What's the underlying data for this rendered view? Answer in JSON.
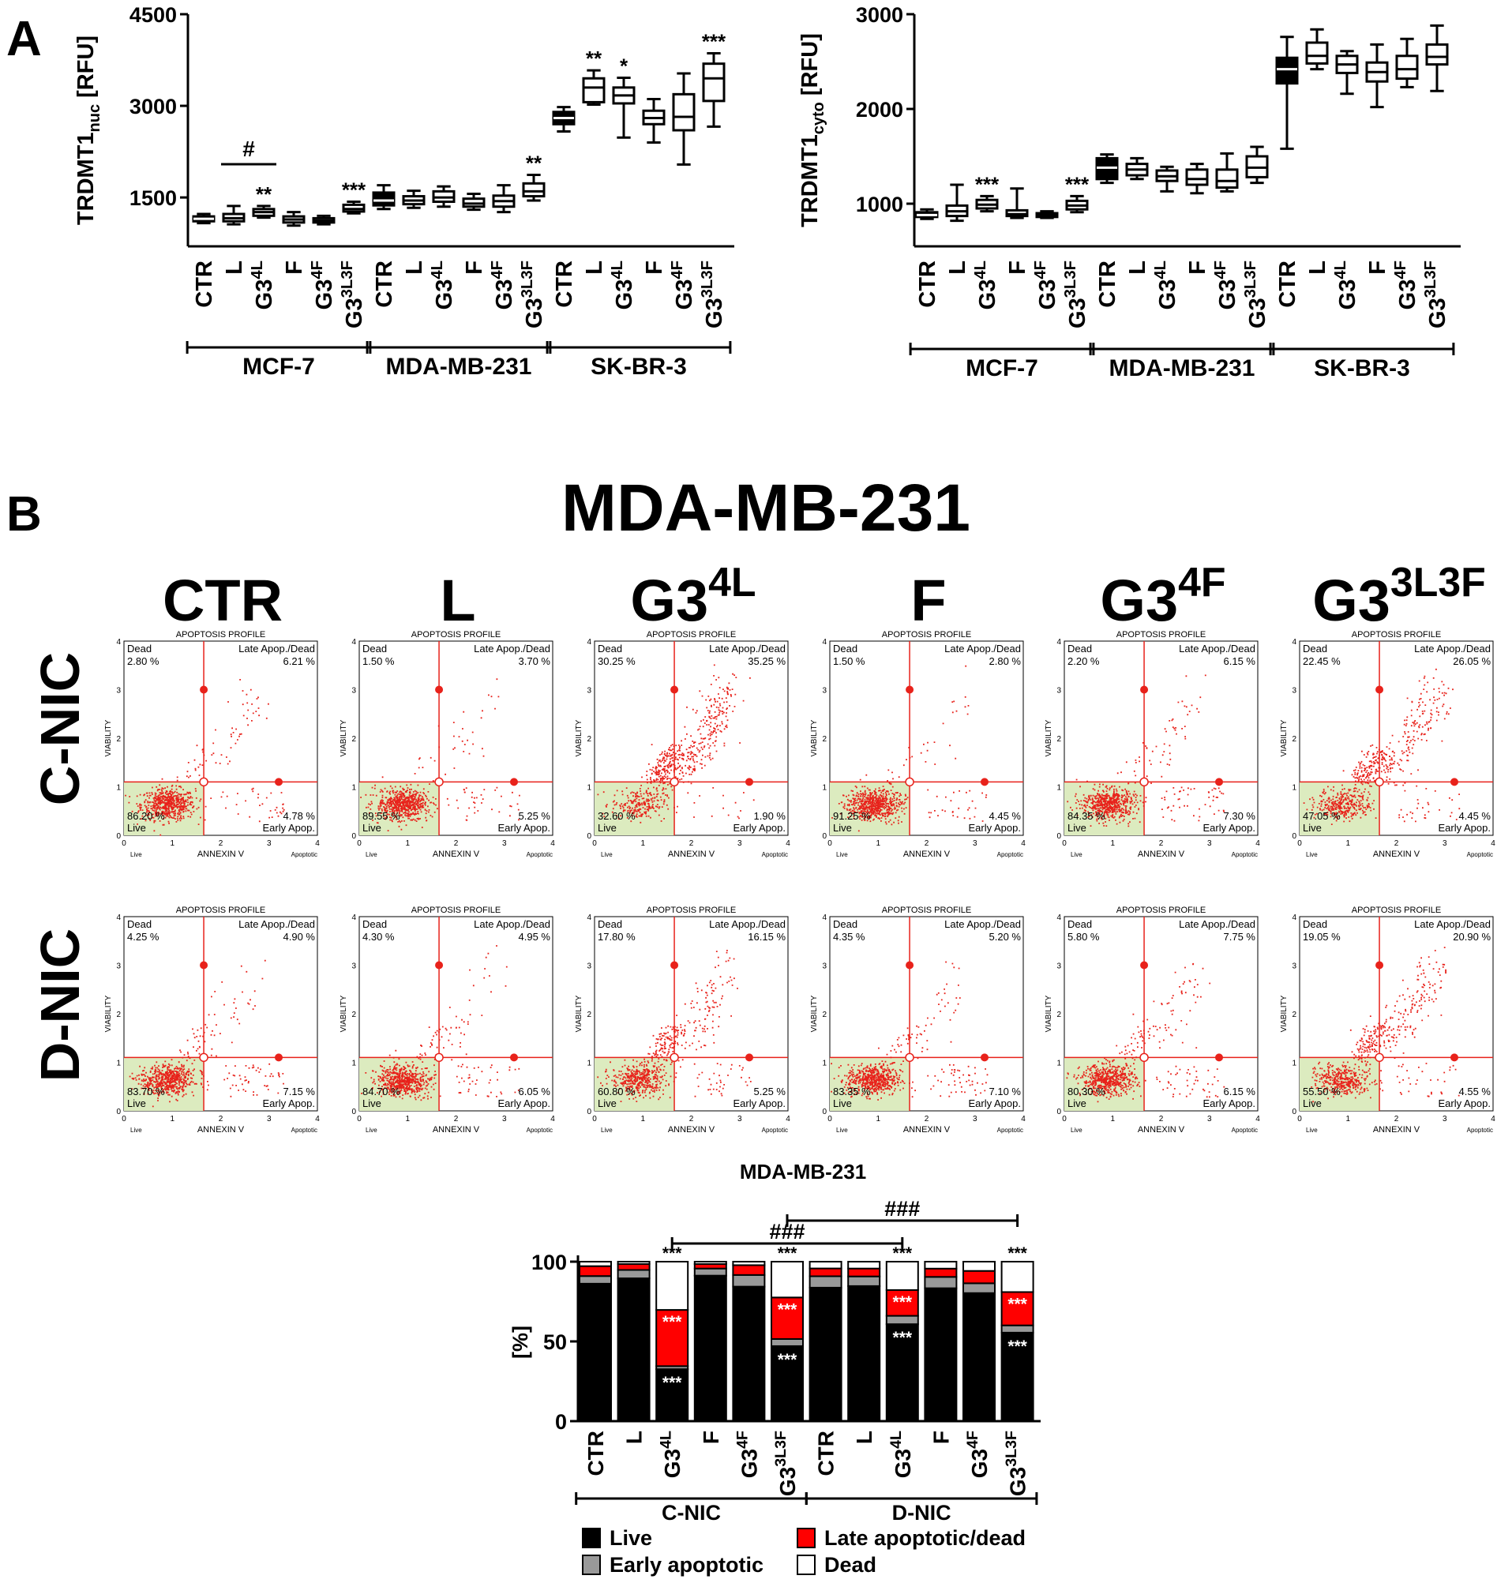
{
  "colors": {
    "box_filled": "#000000",
    "box_open": "#ffffff",
    "scatter": "#e8221b",
    "gate_line": "#e8221b",
    "live_gate_fill": "#dcebbf",
    "live": "#000000",
    "early": "#999999",
    "late": "#ff0000",
    "dead": "#ffffff"
  },
  "panel_a": {
    "label": "A",
    "nuc": {
      "y_title": "TRDMT1",
      "y_sub": "nuc",
      "y_unit": " [RFU]",
      "yticks": [
        "1500",
        "3000",
        "4500"
      ],
      "ytick_values": [
        1500,
        3000,
        4500
      ],
      "ylim": [
        700,
        4500
      ]
    },
    "cyto": {
      "y_title": "TRDMT1",
      "y_sub": "cyto",
      "y_unit": " [RFU]",
      "yticks": [
        "1000",
        "2000",
        "3000"
      ],
      "ytick_values": [
        1000,
        2000,
        3000
      ],
      "ylim": [
        550,
        3000
      ]
    },
    "treatments": [
      {
        "base": "CTR",
        "sup": ""
      },
      {
        "base": "L",
        "sup": ""
      },
      {
        "base": "G3",
        "sup": "4L"
      },
      {
        "base": "F",
        "sup": ""
      },
      {
        "base": "G3",
        "sup": "4F"
      },
      {
        "base": "G3",
        "sup": "3L3F"
      }
    ],
    "cell_lines": [
      "MCF-7",
      "MDA-MB-231",
      "SK-BR-3"
    ],
    "hash": "#"
  },
  "chart_data": [
    {
      "type": "box",
      "title": "",
      "ylabel": "TRDMT1nuc [RFU]",
      "ylim": [
        700,
        4500
      ],
      "groups": [
        "MCF-7",
        "MDA-MB-231",
        "SK-BR-3"
      ],
      "categories": [
        "CTR",
        "L",
        "G3 4L",
        "F",
        "G3 4F",
        "G3 3L3F"
      ],
      "boxes": [
        {
          "group": "MCF-7",
          "cat": "CTR",
          "min": 1080,
          "q1": 1110,
          "median": 1150,
          "q3": 1190,
          "max": 1230,
          "sig": ""
        },
        {
          "group": "MCF-7",
          "cat": "L",
          "min": 1060,
          "q1": 1110,
          "median": 1160,
          "q3": 1230,
          "max": 1360,
          "sig": ""
        },
        {
          "group": "MCF-7",
          "cat": "G3 4L",
          "min": 1170,
          "q1": 1200,
          "median": 1260,
          "q3": 1310,
          "max": 1360,
          "sig": "**"
        },
        {
          "group": "MCF-7",
          "cat": "F",
          "min": 1040,
          "q1": 1090,
          "median": 1140,
          "q3": 1190,
          "max": 1260,
          "sig": ""
        },
        {
          "group": "MCF-7",
          "cat": "G3 4F",
          "min": 1060,
          "q1": 1090,
          "median": 1120,
          "q3": 1160,
          "max": 1200,
          "sig": ""
        },
        {
          "group": "MCF-7",
          "cat": "G3 3L3F",
          "min": 1240,
          "q1": 1270,
          "median": 1310,
          "q3": 1380,
          "max": 1430,
          "sig": "***"
        },
        {
          "group": "MDA-MB-231",
          "cat": "CTR",
          "min": 1310,
          "q1": 1370,
          "median": 1450,
          "q3": 1580,
          "max": 1700,
          "sig": ""
        },
        {
          "group": "MDA-MB-231",
          "cat": "L",
          "min": 1330,
          "q1": 1390,
          "median": 1450,
          "q3": 1520,
          "max": 1610,
          "sig": ""
        },
        {
          "group": "MDA-MB-231",
          "cat": "G3 4L",
          "min": 1350,
          "q1": 1430,
          "median": 1500,
          "q3": 1600,
          "max": 1680,
          "sig": ""
        },
        {
          "group": "MDA-MB-231",
          "cat": "F",
          "min": 1300,
          "q1": 1350,
          "median": 1400,
          "q3": 1480,
          "max": 1560,
          "sig": ""
        },
        {
          "group": "MDA-MB-231",
          "cat": "G3 4F",
          "min": 1260,
          "q1": 1350,
          "median": 1440,
          "q3": 1530,
          "max": 1700,
          "sig": ""
        },
        {
          "group": "MDA-MB-231",
          "cat": "G3 3L3F",
          "min": 1450,
          "q1": 1520,
          "median": 1600,
          "q3": 1730,
          "max": 1870,
          "sig": "**"
        },
        {
          "group": "SK-BR-3",
          "cat": "CTR",
          "min": 2580,
          "q1": 2700,
          "median": 2800,
          "q3": 2900,
          "max": 2980,
          "sig": ""
        },
        {
          "group": "SK-BR-3",
          "cat": "L",
          "min": 3020,
          "q1": 3060,
          "median": 3300,
          "q3": 3450,
          "max": 3580,
          "sig": "**"
        },
        {
          "group": "SK-BR-3",
          "cat": "G3 4L",
          "min": 2480,
          "q1": 3040,
          "median": 3170,
          "q3": 3300,
          "max": 3460,
          "sig": "*"
        },
        {
          "group": "SK-BR-3",
          "cat": "F",
          "min": 2400,
          "q1": 2700,
          "median": 2800,
          "q3": 2920,
          "max": 3110,
          "sig": ""
        },
        {
          "group": "SK-BR-3",
          "cat": "G3 4F",
          "min": 2040,
          "q1": 2600,
          "median": 2820,
          "q3": 3190,
          "max": 3530,
          "sig": ""
        },
        {
          "group": "SK-BR-3",
          "cat": "G3 3L3F",
          "min": 2660,
          "q1": 3080,
          "median": 3450,
          "q3": 3690,
          "max": 3860,
          "sig": "***"
        }
      ]
    },
    {
      "type": "box",
      "title": "",
      "ylabel": "TRDMT1cyto [RFU]",
      "ylim": [
        550,
        3000
      ],
      "groups": [
        "MCF-7",
        "MDA-MB-231",
        "SK-BR-3"
      ],
      "categories": [
        "CTR",
        "L",
        "G3 4L",
        "F",
        "G3 4F",
        "G3 3L3F"
      ],
      "boxes": [
        {
          "group": "MCF-7",
          "cat": "CTR",
          "min": 840,
          "q1": 860,
          "median": 880,
          "q3": 910,
          "max": 940,
          "sig": ""
        },
        {
          "group": "MCF-7",
          "cat": "L",
          "min": 820,
          "q1": 870,
          "median": 920,
          "q3": 980,
          "max": 1200,
          "sig": ""
        },
        {
          "group": "MCF-7",
          "cat": "G3 4L",
          "min": 920,
          "q1": 950,
          "median": 990,
          "q3": 1040,
          "max": 1080,
          "sig": "***"
        },
        {
          "group": "MCF-7",
          "cat": "F",
          "min": 850,
          "q1": 870,
          "median": 890,
          "q3": 930,
          "max": 1160,
          "sig": ""
        },
        {
          "group": "MCF-7",
          "cat": "G3 4F",
          "min": 850,
          "q1": 860,
          "median": 880,
          "q3": 900,
          "max": 920,
          "sig": ""
        },
        {
          "group": "MCF-7",
          "cat": "G3 3L3F",
          "min": 910,
          "q1": 940,
          "median": 980,
          "q3": 1030,
          "max": 1080,
          "sig": "***"
        },
        {
          "group": "MDA-MB-231",
          "cat": "CTR",
          "min": 1220,
          "q1": 1260,
          "median": 1380,
          "q3": 1480,
          "max": 1520,
          "sig": ""
        },
        {
          "group": "MDA-MB-231",
          "cat": "L",
          "min": 1260,
          "q1": 1300,
          "median": 1360,
          "q3": 1420,
          "max": 1480,
          "sig": ""
        },
        {
          "group": "MDA-MB-231",
          "cat": "G3 4L",
          "min": 1130,
          "q1": 1240,
          "median": 1290,
          "q3": 1350,
          "max": 1390,
          "sig": ""
        },
        {
          "group": "MDA-MB-231",
          "cat": "F",
          "min": 1110,
          "q1": 1200,
          "median": 1260,
          "q3": 1360,
          "max": 1420,
          "sig": ""
        },
        {
          "group": "MDA-MB-231",
          "cat": "G3 4F",
          "min": 1130,
          "q1": 1170,
          "median": 1240,
          "q3": 1360,
          "max": 1530,
          "sig": ""
        },
        {
          "group": "MDA-MB-231",
          "cat": "G3 3L3F",
          "min": 1220,
          "q1": 1280,
          "median": 1380,
          "q3": 1500,
          "max": 1600,
          "sig": ""
        },
        {
          "group": "SK-BR-3",
          "cat": "CTR",
          "min": 1580,
          "q1": 2270,
          "median": 2420,
          "q3": 2540,
          "max": 2760,
          "sig": ""
        },
        {
          "group": "SK-BR-3",
          "cat": "L",
          "min": 2420,
          "q1": 2480,
          "median": 2560,
          "q3": 2700,
          "max": 2840,
          "sig": ""
        },
        {
          "group": "SK-BR-3",
          "cat": "G3 4L",
          "min": 2160,
          "q1": 2380,
          "median": 2470,
          "q3": 2560,
          "max": 2610,
          "sig": ""
        },
        {
          "group": "SK-BR-3",
          "cat": "F",
          "min": 2020,
          "q1": 2290,
          "median": 2390,
          "q3": 2490,
          "max": 2680,
          "sig": ""
        },
        {
          "group": "SK-BR-3",
          "cat": "G3 4F",
          "min": 2230,
          "q1": 2320,
          "median": 2420,
          "q3": 2560,
          "max": 2740,
          "sig": ""
        },
        {
          "group": "SK-BR-3",
          "cat": "G3 3L3F",
          "min": 2190,
          "q1": 2470,
          "median": 2550,
          "q3": 2680,
          "max": 2880,
          "sig": ""
        }
      ]
    },
    {
      "type": "scatter",
      "title": "APOPTOSIS PROFILE",
      "xlabel": "ANNEXIN V",
      "ylabel": "VIABILITY",
      "xlim": [
        0,
        4
      ],
      "ylim": [
        0,
        4
      ],
      "cell_line": "MDA-MB-231",
      "quadrant_labels": {
        "dead": "Dead",
        "late": "Late Apop./Dead",
        "live": "Live",
        "early": "Early Apop."
      },
      "x_end_labels": [
        "Live",
        "Apoptotic"
      ],
      "ticks": [
        "0",
        "1",
        "2",
        "3",
        "4"
      ],
      "profiles": [
        {
          "row": "C-NIC",
          "treatment": "CTR",
          "dead": "2.80 %",
          "late": "6.21 %",
          "live": "86.20 %",
          "early": "4.78 %"
        },
        {
          "row": "C-NIC",
          "treatment": "L",
          "dead": "1.50 %",
          "late": "3.70 %",
          "live": "89.55 %",
          "early": "5.25 %"
        },
        {
          "row": "C-NIC",
          "treatment": "G3 4L",
          "dead": "30.25 %",
          "late": "35.25 %",
          "live": "32.60 %",
          "early": "1.90 %"
        },
        {
          "row": "C-NIC",
          "treatment": "F",
          "dead": "1.50 %",
          "late": "2.80 %",
          "live": "91.25 %",
          "early": "4.45 %"
        },
        {
          "row": "C-NIC",
          "treatment": "G3 4F",
          "dead": "2.20 %",
          "late": "6.15 %",
          "live": "84.35 %",
          "early": "7.30 %"
        },
        {
          "row": "C-NIC",
          "treatment": "G3 3L3F",
          "dead": "22.45 %",
          "late": "26.05 %",
          "live": "47.05 %",
          "early": "4.45 %"
        },
        {
          "row": "D-NIC",
          "treatment": "CTR",
          "dead": "4.25 %",
          "late": "4.90 %",
          "live": "83.70 %",
          "early": "7.15 %"
        },
        {
          "row": "D-NIC",
          "treatment": "L",
          "dead": "4.30 %",
          "late": "4.95 %",
          "live": "84.70 %",
          "early": "6.05 %"
        },
        {
          "row": "D-NIC",
          "treatment": "G3 4L",
          "dead": "17.80 %",
          "late": "16.15 %",
          "live": "60.80 %",
          "early": "5.25 %"
        },
        {
          "row": "D-NIC",
          "treatment": "F",
          "dead": "4.35 %",
          "late": "5.20 %",
          "live": "83.35 %",
          "early": "7.10 %"
        },
        {
          "row": "D-NIC",
          "treatment": "G3 4F",
          "dead": "5.80 %",
          "late": "7.75 %",
          "live": "80.30 %",
          "early": "6.15 %"
        },
        {
          "row": "D-NIC",
          "treatment": "G3 3L3F",
          "dead": "19.05 %",
          "late": "20.90 %",
          "live": "55.50 %",
          "early": "4.55 %"
        }
      ]
    },
    {
      "type": "bar",
      "title": "MDA-MB-231",
      "ylabel": "[%]",
      "ylim": [
        0,
        100
      ],
      "yticks": [
        "0",
        "50",
        "100"
      ],
      "groups": [
        "C-NIC",
        "D-NIC"
      ],
      "legend": [
        "Live",
        "Early apoptotic",
        "Late apoptotic/dead",
        "Dead"
      ],
      "hash": "###",
      "bars": [
        {
          "group": "C-NIC",
          "cat": "CTR",
          "live": 86.2,
          "early": 4.78,
          "late": 6.21,
          "dead": 2.8,
          "sig": []
        },
        {
          "group": "C-NIC",
          "cat": "L",
          "live": 89.55,
          "early": 5.25,
          "late": 3.7,
          "dead": 1.5,
          "sig": []
        },
        {
          "group": "C-NIC",
          "cat": "G3 4L",
          "live": 32.6,
          "early": 1.9,
          "late": 35.25,
          "dead": 30.25,
          "sig": [
            "***",
            "***",
            "***"
          ]
        },
        {
          "group": "C-NIC",
          "cat": "F",
          "live": 91.25,
          "early": 4.45,
          "late": 2.8,
          "dead": 1.5,
          "sig": []
        },
        {
          "group": "C-NIC",
          "cat": "G3 4F",
          "live": 84.35,
          "early": 7.3,
          "late": 6.15,
          "dead": 2.2,
          "sig": []
        },
        {
          "group": "C-NIC",
          "cat": "G3 3L3F",
          "live": 47.05,
          "early": 4.45,
          "late": 26.05,
          "dead": 22.45,
          "sig": [
            "***",
            "***",
            "***"
          ]
        },
        {
          "group": "D-NIC",
          "cat": "CTR",
          "live": 83.7,
          "early": 7.15,
          "late": 4.9,
          "dead": 4.25,
          "sig": []
        },
        {
          "group": "D-NIC",
          "cat": "L",
          "live": 84.7,
          "early": 6.05,
          "late": 4.95,
          "dead": 4.3,
          "sig": []
        },
        {
          "group": "D-NIC",
          "cat": "G3 4L",
          "live": 60.8,
          "early": 5.25,
          "late": 16.15,
          "dead": 17.8,
          "sig": [
            "***",
            "***",
            "***"
          ]
        },
        {
          "group": "D-NIC",
          "cat": "F",
          "live": 83.35,
          "early": 7.1,
          "late": 5.2,
          "dead": 4.35,
          "sig": []
        },
        {
          "group": "D-NIC",
          "cat": "G3 4F",
          "live": 80.3,
          "early": 6.15,
          "late": 7.75,
          "dead": 5.8,
          "sig": []
        },
        {
          "group": "D-NIC",
          "cat": "G3 3L3F",
          "live": 55.5,
          "early": 4.55,
          "late": 20.9,
          "dead": 19.05,
          "sig": [
            "***",
            "***",
            "***"
          ]
        }
      ]
    }
  ],
  "panel_b": {
    "label": "B",
    "title": "MDA-MB-231",
    "rows": [
      "C-NIC",
      "D-NIC"
    ],
    "columns": [
      {
        "base": "CTR",
        "sup": ""
      },
      {
        "base": "L",
        "sup": ""
      },
      {
        "base": "G3",
        "sup": "4L"
      },
      {
        "base": "F",
        "sup": ""
      },
      {
        "base": "G3",
        "sup": "4F"
      },
      {
        "base": "G3",
        "sup": "3L3F"
      }
    ]
  }
}
